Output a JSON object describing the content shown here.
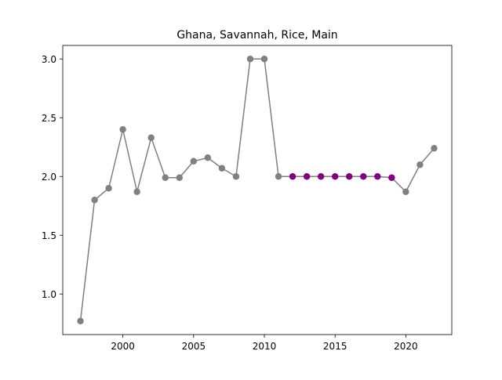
{
  "chart_data": {
    "type": "line",
    "title": "Ghana, Savannah, Rice, Main",
    "xlabel": "",
    "ylabel": "",
    "xlim": [
      1995.75,
      2023.25
    ],
    "ylim": [
      0.655,
      3.115
    ],
    "xticks": [
      2000,
      2005,
      2010,
      2015,
      2020
    ],
    "yticks": [
      1.0,
      1.5,
      2.0,
      2.5,
      3.0
    ],
    "xtick_labels": [
      "2000",
      "2005",
      "2010",
      "2015",
      "2020"
    ],
    "ytick_labels": [
      "1.0",
      "1.5",
      "2.0",
      "2.5",
      "3.0"
    ],
    "grid": false,
    "line_color": "#808080",
    "series": [
      {
        "color": "#808080",
        "x": [
          1997,
          1998,
          1999,
          2000,
          2001,
          2002,
          2003,
          2004,
          2005,
          2006,
          2007,
          2008,
          2009,
          2010,
          2011,
          2020,
          2021,
          2022
        ],
        "y": [
          0.77,
          1.8,
          1.9,
          2.4,
          1.87,
          2.33,
          1.99,
          1.99,
          2.13,
          2.16,
          2.07,
          2.0,
          3.0,
          3.0,
          2.0,
          1.87,
          2.1,
          2.24
        ]
      },
      {
        "color": "#800080",
        "x": [
          2012,
          2013,
          2014,
          2015,
          2016,
          2017,
          2018,
          2019
        ],
        "y": [
          2.0,
          2.0,
          2.0,
          2.0,
          2.0,
          2.0,
          2.0,
          1.99
        ]
      }
    ],
    "line": {
      "x": [
        1997,
        1998,
        1999,
        2000,
        2001,
        2002,
        2003,
        2004,
        2005,
        2006,
        2007,
        2008,
        2009,
        2010,
        2011,
        2012,
        2013,
        2014,
        2015,
        2016,
        2017,
        2018,
        2019,
        2020,
        2021,
        2022
      ],
      "y": [
        0.77,
        1.8,
        1.9,
        2.4,
        1.87,
        2.33,
        1.99,
        1.99,
        2.13,
        2.16,
        2.07,
        2.0,
        3.0,
        3.0,
        2.0,
        2.0,
        2.0,
        2.0,
        2.0,
        2.0,
        2.0,
        2.0,
        1.99,
        1.87,
        2.1,
        2.24
      ]
    }
  }
}
